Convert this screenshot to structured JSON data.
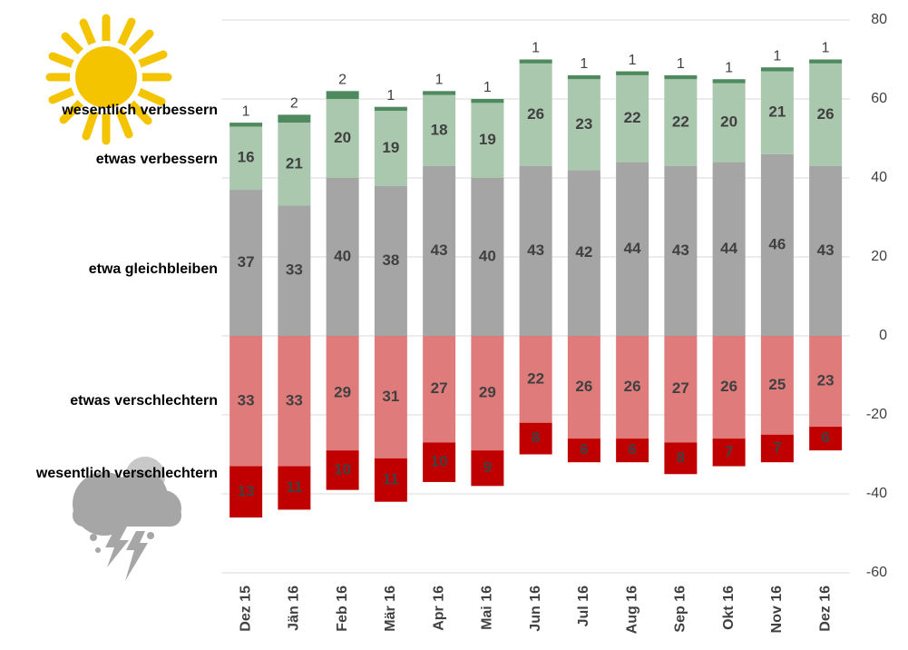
{
  "chart_data": {
    "type": "bar",
    "categories": [
      "Dez 15",
      "Jän 16",
      "Feb 16",
      "Mär 16",
      "Apr 16",
      "Mai 16",
      "Jun 16",
      "Jul 16",
      "Aug 16",
      "Sep 16",
      "Okt 16",
      "Nov 16",
      "Dez 16"
    ],
    "series": [
      {
        "name": "etwa gleichbleiben",
        "color": "#a5a5a5",
        "values": [
          37,
          33,
          40,
          38,
          43,
          40,
          43,
          42,
          44,
          43,
          44,
          46,
          43
        ]
      },
      {
        "name": "etwas verbessern",
        "color": "#a9c8ae",
        "values": [
          16,
          21,
          20,
          19,
          18,
          19,
          26,
          23,
          22,
          22,
          20,
          21,
          26
        ]
      },
      {
        "name": "wesentlich verbessern",
        "color": "#4e8a5e",
        "values": [
          1,
          2,
          2,
          1,
          1,
          1,
          1,
          1,
          1,
          1,
          1,
          1,
          1
        ]
      },
      {
        "name": "etwas verschlechtern",
        "color": "#e07b7b",
        "values": [
          -33,
          -33,
          -29,
          -31,
          -27,
          -29,
          -22,
          -26,
          -26,
          -27,
          -26,
          -25,
          -23
        ],
        "value_labels": [
          "33",
          "33",
          "29",
          "31",
          "27",
          "29",
          "22",
          "26",
          "26",
          "27",
          "26",
          "25",
          "23"
        ]
      },
      {
        "name": "wesentlich verschlechtern",
        "color": "#c00000",
        "values": [
          -13,
          -11,
          -10,
          -11,
          -10,
          -9,
          -8,
          -6,
          -6,
          -8,
          -7,
          -7,
          -6
        ],
        "value_labels": [
          "13",
          "11",
          "10",
          "11",
          "10",
          "9",
          "8",
          "6",
          "6",
          "8",
          "7",
          "7",
          "6"
        ]
      }
    ],
    "ylim": [
      -60,
      80
    ],
    "yticks": [
      -60,
      -40,
      -20,
      0,
      20,
      40,
      60,
      80
    ],
    "grid": true,
    "stacked": true
  }
}
